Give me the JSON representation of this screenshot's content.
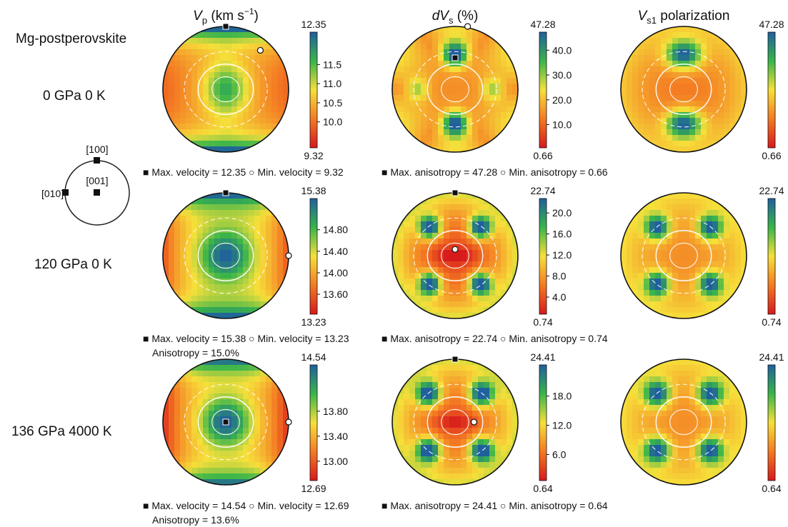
{
  "figure_title": "Mg-postperovskite",
  "column_headers": {
    "vp": {
      "base": "V",
      "sub": "p",
      "unit": " (km s",
      "sup": "−1",
      "close": ")"
    },
    "dvs": {
      "base": "dV",
      "sub": "s",
      "suffix": " (%)"
    },
    "vs1": {
      "base": "V",
      "sub": "s1",
      "suffix": " polarization"
    }
  },
  "legend_orientation": {
    "labels": [
      "[100]",
      "[001]",
      "[010]"
    ]
  },
  "rows": [
    {
      "condition": "0 GPa 0 K",
      "vp_caption": "■ Max. velocity = 12.35   ○ Min. velocity = 9.32",
      "dvs_caption": "■ Max. anisotropy = 47.28  ○ Min. anisotropy = 0.66",
      "vp_anisotropy": ""
    },
    {
      "condition": "120 GPa 0 K",
      "vp_caption": "■ Max. velocity = 15.38   ○ Min. velocity = 13.23",
      "dvs_caption": "■ Max. anisotropy = 22.74  ○ Min. anisotropy = 0.74",
      "vp_anisotropy": "Anisotropy = 15.0%"
    },
    {
      "condition": "136 GPa  4000 K",
      "vp_caption": "■ Max. velocity = 14.54   ○ Min. velocity = 12.69",
      "dvs_caption": "■ Max. anisotropy = 24.41  ○ Min. anisotropy = 0.64",
      "vp_anisotropy": "Anisotropy = 13.6%"
    }
  ],
  "chart_data": [
    {
      "type": "heatmap",
      "panel": "vp-row1",
      "pattern": "vp_a",
      "max": "12.35",
      "min": "9.32",
      "ticks": [
        "11.5",
        "11.0",
        "10.5",
        "10.0"
      ],
      "tick_values": [
        11.5,
        11.0,
        10.5,
        10.0
      ],
      "range": [
        9.32,
        12.35
      ],
      "max_marker": [
        0,
        -1
      ],
      "min_marker": [
        0.55,
        -0.62
      ]
    },
    {
      "type": "heatmap",
      "panel": "dvs-row1",
      "pattern": "dvs_a",
      "max": "47.28",
      "min": "0.66",
      "ticks": [
        "40.0",
        "30.0",
        "20.0",
        "10.0"
      ],
      "tick_values": [
        40.0,
        30.0,
        20.0,
        10.0
      ],
      "range": [
        0.66,
        47.28
      ],
      "max_marker": [
        0,
        -0.5
      ],
      "min_marker": [
        0.2,
        -1
      ]
    },
    {
      "type": "heatmap",
      "panel": "vs1-row1",
      "pattern": "vs1_a",
      "max": "47.28",
      "min": "0.66",
      "ticks": [],
      "tick_values": [],
      "range": [
        0.66,
        47.28
      ]
    },
    {
      "type": "heatmap",
      "panel": "vp-row2",
      "pattern": "vp_b",
      "max": "15.38",
      "min": "13.23",
      "ticks": [
        "14.80",
        "14.40",
        "14.00",
        "13.60"
      ],
      "tick_values": [
        14.8,
        14.4,
        14.0,
        13.6
      ],
      "range": [
        13.23,
        15.38
      ],
      "max_marker": [
        0,
        -1
      ],
      "min_marker": [
        1,
        0
      ]
    },
    {
      "type": "heatmap",
      "panel": "dvs-row2",
      "pattern": "dvs_b",
      "max": "22.74",
      "min": "0.74",
      "ticks": [
        "20.0",
        "16.0",
        "12.0",
        "8.0",
        "4.0"
      ],
      "tick_values": [
        20.0,
        16.0,
        12.0,
        8.0,
        4.0
      ],
      "range": [
        0.74,
        22.74
      ],
      "max_marker": [
        0,
        -1
      ],
      "min_marker": [
        0,
        -0.1
      ]
    },
    {
      "type": "heatmap",
      "panel": "vs1-row2",
      "pattern": "vs1_b",
      "max": "22.74",
      "min": "0.74",
      "ticks": [],
      "tick_values": [],
      "range": [
        0.74,
        22.74
      ]
    },
    {
      "type": "heatmap",
      "panel": "vp-row3",
      "pattern": "vp_c",
      "max": "14.54",
      "min": "12.69",
      "ticks": [
        "13.80",
        "13.40",
        "13.00"
      ],
      "tick_values": [
        13.8,
        13.4,
        13.0
      ],
      "range": [
        12.69,
        14.54
      ],
      "max_marker": [
        0,
        0
      ],
      "min_marker": [
        1,
        0
      ]
    },
    {
      "type": "heatmap",
      "panel": "dvs-row3",
      "pattern": "dvs_c",
      "max": "24.41",
      "min": "0.64",
      "ticks": [
        "18.0",
        "12.0",
        "6.0"
      ],
      "tick_values": [
        18.0,
        12.0,
        6.0
      ],
      "range": [
        0.64,
        24.41
      ],
      "max_marker": [
        0,
        -1
      ],
      "min_marker": [
        0.3,
        0
      ]
    },
    {
      "type": "heatmap",
      "panel": "vs1-row3",
      "pattern": "vs1_c",
      "max": "24.41",
      "min": "0.64",
      "ticks": [],
      "tick_values": [],
      "range": [
        0.64,
        24.41
      ]
    }
  ]
}
